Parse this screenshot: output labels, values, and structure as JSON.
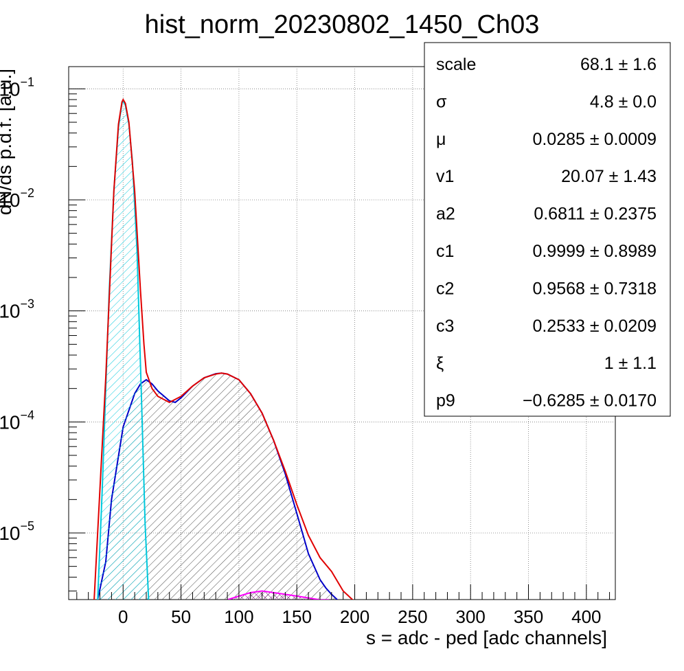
{
  "chart_data": {
    "type": "line",
    "title": "hist_norm_20230802_1450_Ch03",
    "xlabel": "s = adc - ped [adc channels]",
    "ylabel": "dN/ds p.d.f. [a.u.]",
    "xlim": [
      -47,
      425
    ],
    "ylim_log10": [
      -5.6,
      -0.8
    ],
    "yscale": "log",
    "grid": true,
    "x_ticks": [
      0,
      50,
      100,
      150,
      200,
      250,
      300,
      350,
      400
    ],
    "y_ticks": [
      {
        "base": "10",
        "exp": "−1",
        "log10": -1
      },
      {
        "base": "10",
        "exp": "−2",
        "log10": -2
      },
      {
        "base": "10",
        "exp": "−3",
        "log10": -3
      },
      {
        "base": "10",
        "exp": "−4",
        "log10": -4
      },
      {
        "base": "10",
        "exp": "−5",
        "log10": -5
      }
    ],
    "series": [
      {
        "color": "#e00000",
        "style": "line",
        "x": [
          -25,
          -15,
          -8,
          -4,
          -1,
          0,
          2,
          5,
          10,
          15,
          18,
          20,
          25,
          30,
          40,
          50,
          60,
          70,
          80,
          85,
          90,
          100,
          110,
          120,
          130,
          140,
          150,
          160,
          170,
          180,
          190,
          200
        ],
        "y": [
          2.5e-06,
          0.00025,
          0.012,
          0.048,
          0.076,
          0.08,
          0.074,
          0.05,
          0.012,
          0.0015,
          0.0005,
          0.00028,
          0.0002,
          0.00017,
          0.00015,
          0.00017,
          0.00021,
          0.00025,
          0.00027,
          0.000275,
          0.00027,
          0.00024,
          0.00018,
          0.00012,
          6.8e-05,
          3.6e-05,
          1.8e-05,
          9.5e-06,
          6e-06,
          4.5e-06,
          3e-06,
          2.4e-06
        ]
      },
      {
        "color": "#00c8dc",
        "style": "hatched-fill",
        "x": [
          -22,
          -18,
          -12,
          -8,
          -4,
          -1,
          0,
          2,
          5,
          8,
          12,
          16,
          19,
          22
        ],
        "y": [
          2.5e-06,
          2.5e-05,
          0.0015,
          0.012,
          0.045,
          0.074,
          0.078,
          0.071,
          0.048,
          0.022,
          0.0035,
          0.00015,
          1.2e-05,
          2.5e-06
        ]
      },
      {
        "color": "#0000c8",
        "style": "hatched-fill",
        "x": [
          -22,
          -15,
          -10,
          0,
          10,
          15,
          20,
          25,
          30,
          40,
          45,
          50,
          60,
          70,
          80,
          85,
          90,
          100,
          110,
          120,
          130,
          140,
          150,
          160,
          170,
          175,
          180,
          185
        ],
        "y": [
          2.5e-06,
          5.5e-06,
          2e-05,
          9e-05,
          0.00018,
          0.00022,
          0.00024,
          0.00022,
          0.00019,
          0.000155,
          0.00015,
          0.000165,
          0.00021,
          0.00025,
          0.000272,
          0.000275,
          0.00027,
          0.00024,
          0.00018,
          0.00012,
          6.8e-05,
          3.4e-05,
          1.5e-05,
          6.5e-06,
          3.8e-06,
          3.2e-06,
          2.8e-06,
          2.5e-06
        ]
      },
      {
        "color": "#ff00ff",
        "style": "hatched-fill",
        "x": [
          90,
          95,
          100,
          110,
          120,
          130,
          140,
          150,
          160,
          170,
          178
        ],
        "y": [
          2.5e-06,
          2.6e-06,
          2.7e-06,
          2.9e-06,
          3e-06,
          2.9e-06,
          2.8e-06,
          2.7e-06,
          2.6e-06,
          2.5e-06,
          2.5e-06
        ]
      }
    ]
  },
  "fit_stats": {
    "rows": [
      {
        "name": "scale",
        "value": "68.1 ± 1.6"
      },
      {
        "name": "σ",
        "value": "4.8 ± 0.0"
      },
      {
        "name": "μ",
        "value": "0.0285 ± 0.0009"
      },
      {
        "name": "v1",
        "value": "20.07 ± 1.43"
      },
      {
        "name": "a2",
        "value": "0.6811 ± 0.2375"
      },
      {
        "name": "c1",
        "value": "0.9999 ± 0.8989"
      },
      {
        "name": "c2",
        "value": "0.9568 ± 0.7318"
      },
      {
        "name": "c3",
        "value": "0.2533 ± 0.0209"
      },
      {
        "name": "ξ",
        "value": "1 ± 1.1"
      },
      {
        "name": "p9",
        "value": "−0.6285 ± 0.0170"
      }
    ]
  }
}
